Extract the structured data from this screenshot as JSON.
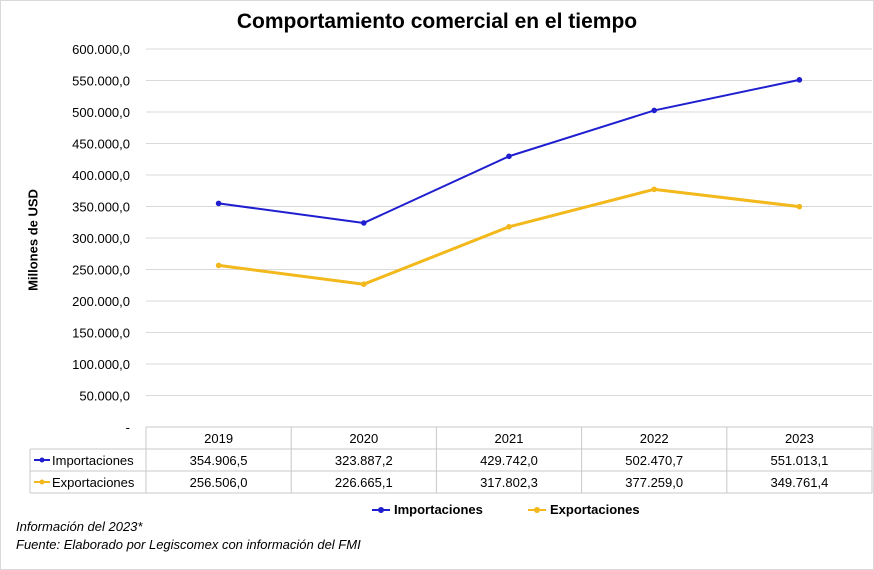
{
  "chart_data": {
    "type": "line",
    "title": "Comportamiento comercial en el tiempo",
    "ylabel": "Millones de USD",
    "xlabel": "",
    "categories": [
      "2019",
      "2020",
      "2021",
      "2022",
      "2023"
    ],
    "ylim": [
      0,
      600000
    ],
    "yticks": [
      "-",
      "50.000,0",
      "100.000,0",
      "150.000,0",
      "200.000,0",
      "250.000,0",
      "300.000,0",
      "350.000,0",
      "400.000,0",
      "450.000,0",
      "500.000,0",
      "550.000,0",
      "600.000,0"
    ],
    "grid": true,
    "legend_position": "bottom",
    "series": [
      {
        "name": "Importaciones",
        "color": "#1f1fd0",
        "values": [
          354906.5,
          323887.2,
          429742.0,
          502470.7,
          551013.1
        ],
        "labels": [
          "354.906,5",
          "323.887,2",
          "429.742,0",
          "502.470,7",
          "551.013,1"
        ]
      },
      {
        "name": "Exportaciones",
        "color": "#f2b81c",
        "values": [
          256506.0,
          226665.1,
          317802.3,
          377259.0,
          349761.4
        ],
        "labels": [
          "256.506,0",
          "226.665,1",
          "317.802,3",
          "377.259,0",
          "349.761,4"
        ]
      }
    ]
  },
  "notes": {
    "line1": "Información del 2023*",
    "line2": "Fuente: Elaborado por Legiscomex con información del FMI"
  }
}
